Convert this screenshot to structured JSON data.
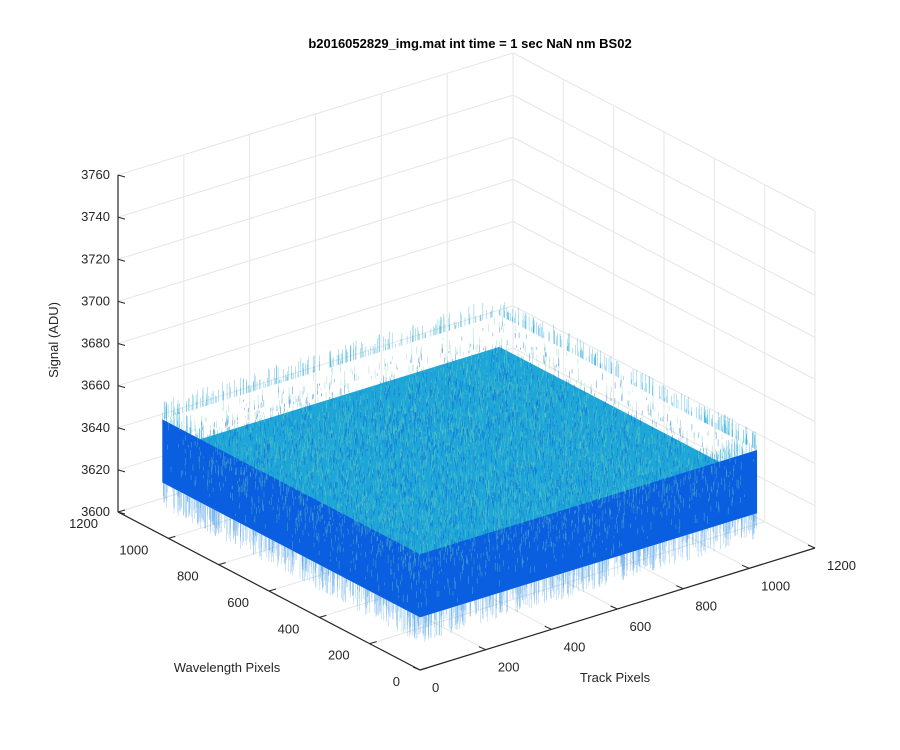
{
  "chart_data": {
    "type": "surface3d",
    "title": "b2016052829_img.mat int time = 1 sec  NaN nm BS02",
    "xlabel": "Track Pixels",
    "ylabel": "Wavelength Pixels",
    "zlabel": "Signal (ADU)",
    "xlim": [
      0,
      1200
    ],
    "ylim": [
      0,
      1200
    ],
    "zlim": [
      3600,
      3760
    ],
    "xticks": [
      "0",
      "200",
      "400",
      "600",
      "800",
      "1000",
      "1200"
    ],
    "yticks": [
      "0",
      "200",
      "400",
      "600",
      "800",
      "1000",
      "1200"
    ],
    "zticks": [
      "3600",
      "3620",
      "3640",
      "3660",
      "3680",
      "3700",
      "3720",
      "3740",
      "3760"
    ],
    "data_extent": {
      "x": [
        0,
        1024
      ],
      "y": [
        0,
        1024
      ]
    },
    "signal_mean": 3640,
    "signal_spread": 15,
    "grid": true,
    "view": "3d-oblique",
    "colors": {
      "low": "#0a5fe0",
      "mid": "#1fa6d8",
      "high": "#6fd4b0",
      "axis": "#262626",
      "grid": "#e6e6e6"
    }
  }
}
